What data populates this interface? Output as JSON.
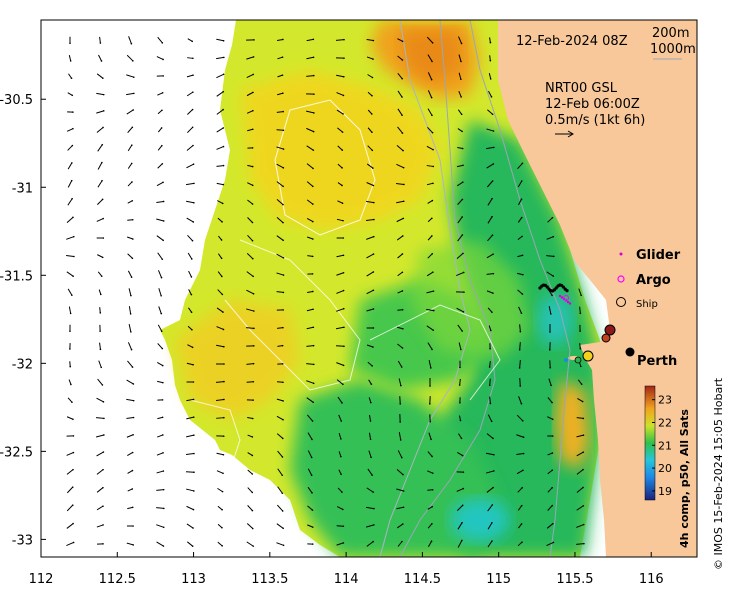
{
  "header": {
    "date": "12-Feb-2024 08Z",
    "isobath_200": "200m",
    "isobath_1000": "1000m"
  },
  "current_info": {
    "product": "NRT00 GSL",
    "time": "12-Feb 06:00Z",
    "scale": "0.5m/s (1kt 6h)"
  },
  "legend": {
    "glider": "Glider",
    "argo": "Argo",
    "ship": "Ship"
  },
  "places": {
    "city": "Perth"
  },
  "colorbar": {
    "label": "4h comp, p50, All Sats",
    "ticks": [
      19,
      20,
      21,
      22,
      23
    ],
    "range": [
      18.6,
      23.6
    ]
  },
  "axes": {
    "x_ticks": [
      112,
      112.5,
      113,
      113.5,
      114,
      114.5,
      115,
      115.5,
      116
    ],
    "y_ticks": [
      -30.5,
      -31,
      -31.5,
      -32,
      -32.5,
      -33
    ],
    "xlim": [
      112,
      116.3
    ],
    "ylim": [
      -33.1,
      -30.05
    ]
  },
  "credit": "© IMOS 15-Feb-2024 15:05 Hobart",
  "colors": {
    "land": "#f8c89a",
    "sst_cool": "#19b070",
    "sst_mid": "#c7e62a",
    "sst_warm": "#ef9a1a"
  }
}
